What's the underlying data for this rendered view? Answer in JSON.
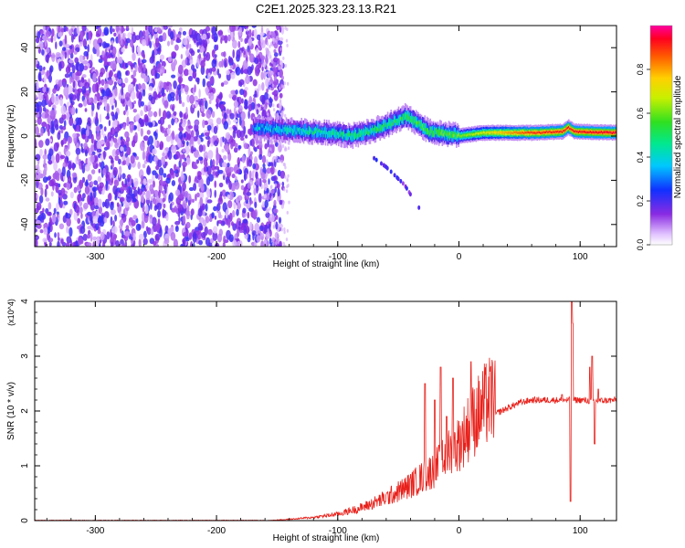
{
  "title": "C2E1.2025.323.23.13.R21",
  "colors": {
    "snr_line": "#e8201a",
    "spec_purple": "#7a1ae0",
    "spec_blue": "#1040ff",
    "spec_cyan": "#00d8e8",
    "spec_green": "#20e020",
    "spec_yellow": "#f0e000",
    "spec_red": "#ff1a1a"
  },
  "chart_data": [
    {
      "type": "heatmap",
      "xlabel": "Height of straight line (km)",
      "ylabel": "Frequency (Hz)",
      "xlim": [
        -350,
        130
      ],
      "ylim": [
        -50,
        50
      ],
      "x_ticks": [
        "-300",
        "-200",
        "-100",
        "0",
        "100"
      ],
      "y_ticks": [
        "-40",
        "-20",
        "0",
        "20",
        "40"
      ],
      "colorbar": {
        "label": "Normalized spectral amplitude",
        "range": [
          0.0,
          1.0
        ],
        "ticks": [
          "0.0",
          "0.2",
          "0.4",
          "0.6",
          "0.8"
        ],
        "colormap": "rainbow (white-purple-blue-cyan-green-yellow-red-magenta)"
      },
      "features": {
        "noise_region_x": [
          -350,
          -160
        ],
        "noise_amplitude": 0.2,
        "carrier_frequency_hz": [
          [
            -170,
            4
          ],
          [
            -150,
            3
          ],
          [
            -120,
            2
          ],
          [
            -100,
            1
          ],
          [
            -90,
            0
          ],
          [
            -75,
            2
          ],
          [
            -60,
            5
          ],
          [
            -45,
            9
          ],
          [
            -35,
            6
          ],
          [
            -25,
            2
          ],
          [
            -10,
            1
          ],
          [
            0,
            0
          ],
          [
            20,
            1.5
          ],
          [
            60,
            1.5
          ],
          [
            85,
            2
          ],
          [
            90,
            4
          ],
          [
            95,
            2
          ],
          [
            130,
            1.5
          ]
        ],
        "carrier_amplitude": [
          [
            -170,
            0.35
          ],
          [
            -120,
            0.45
          ],
          [
            -60,
            0.5
          ],
          [
            -30,
            0.55
          ],
          [
            0,
            0.6
          ],
          [
            30,
            0.75
          ],
          [
            60,
            0.9
          ],
          [
            130,
            0.95
          ]
        ],
        "secondary_branch": [
          [
            -70,
            -10
          ],
          [
            -60,
            -14
          ],
          [
            -45,
            -22
          ],
          [
            -30,
            -35
          ]
        ]
      }
    },
    {
      "type": "line",
      "xlabel": "Height of straight line (km)",
      "ylabel": "SNR (10 * v/v)",
      "y_multiplier": "(x10^4)",
      "xlim": [
        -350,
        130
      ],
      "ylim": [
        0,
        4
      ],
      "x_ticks": [
        "-300",
        "-200",
        "-100",
        "0",
        "100"
      ],
      "y_ticks": [
        "0",
        "1",
        "2",
        "3",
        "4"
      ],
      "series": [
        {
          "envelope": [
            [
              -350,
              0.0
            ],
            [
              -160,
              0.0
            ],
            [
              -140,
              0.02
            ],
            [
              -120,
              0.05
            ],
            [
              -100,
              0.1
            ],
            [
              -80,
              0.2
            ],
            [
              -60,
              0.35
            ],
            [
              -40,
              0.55
            ],
            [
              -20,
              0.8
            ],
            [
              -10,
              1.0
            ],
            [
              0,
              1.2
            ],
            [
              10,
              1.5
            ],
            [
              20,
              1.75
            ],
            [
              30,
              1.95
            ],
            [
              40,
              2.05
            ],
            [
              50,
              2.15
            ],
            [
              60,
              2.2
            ],
            [
              80,
              2.2
            ],
            [
              100,
              2.2
            ],
            [
              110,
              2.18
            ],
            [
              130,
              2.2
            ]
          ],
          "spikes": [
            [
              -28,
              2.5
            ],
            [
              -20,
              2.2
            ],
            [
              -15,
              2.8
            ],
            [
              -10,
              1.9
            ],
            [
              -5,
              2.6
            ],
            [
              10,
              2.9
            ],
            [
              85,
              2.3
            ],
            [
              92,
              0.35
            ],
            [
              93,
              4.0
            ],
            [
              94,
              3.6
            ],
            [
              108,
              2.8
            ],
            [
              110,
              3.0
            ],
            [
              112,
              1.4
            ],
            [
              115,
              2.4
            ]
          ]
        }
      ]
    }
  ]
}
